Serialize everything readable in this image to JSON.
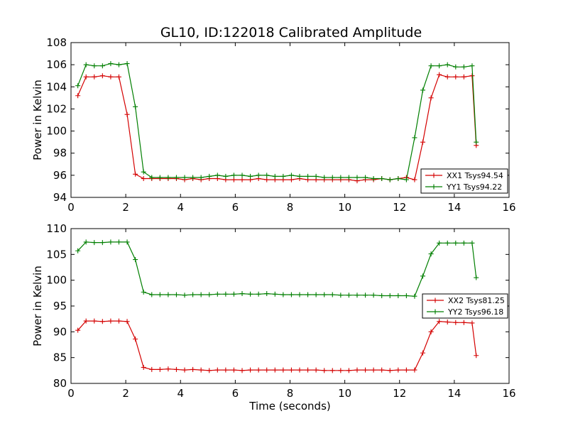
{
  "figure": {
    "title": "GL10, ID:122018 Calibrated Amplitude"
  },
  "chart_data": [
    {
      "type": "line",
      "title": "GL10, ID:122018 Calibrated Amplitude",
      "xlabel": "",
      "ylabel": "Power in Kelvin",
      "xlim": [
        0,
        16
      ],
      "ylim": [
        94,
        108
      ],
      "xticks": [
        0,
        2,
        4,
        6,
        8,
        10,
        12,
        14,
        16
      ],
      "yticks": [
        94,
        96,
        98,
        100,
        102,
        104,
        106,
        108
      ],
      "grid": false,
      "legend": "lower-right",
      "x": [
        0.25,
        0.55,
        0.85,
        1.15,
        1.45,
        1.75,
        2.05,
        2.35,
        2.65,
        2.95,
        3.25,
        3.55,
        3.85,
        4.15,
        4.45,
        4.75,
        5.05,
        5.35,
        5.65,
        5.95,
        6.25,
        6.55,
        6.85,
        7.15,
        7.45,
        7.75,
        8.05,
        8.35,
        8.65,
        8.95,
        9.25,
        9.55,
        9.85,
        10.15,
        10.45,
        10.75,
        11.05,
        11.35,
        11.65,
        11.95,
        12.25,
        12.55,
        12.85,
        13.15,
        13.45,
        13.75,
        14.05,
        14.35,
        14.65,
        14.8
      ],
      "series": [
        {
          "name": "XX1 Tsys94.54",
          "color": "#d40000",
          "values": [
            103.2,
            104.9,
            104.9,
            105.0,
            104.9,
            104.9,
            101.5,
            96.1,
            95.7,
            95.7,
            95.7,
            95.7,
            95.7,
            95.6,
            95.7,
            95.6,
            95.7,
            95.7,
            95.6,
            95.6,
            95.6,
            95.6,
            95.7,
            95.6,
            95.6,
            95.6,
            95.6,
            95.7,
            95.6,
            95.6,
            95.6,
            95.6,
            95.6,
            95.6,
            95.5,
            95.6,
            95.6,
            95.7,
            95.6,
            95.7,
            95.8,
            95.6,
            99.0,
            103.0,
            105.1,
            104.9,
            104.9,
            104.9,
            105.0,
            98.7
          ]
        },
        {
          "name": "YY1 Tsys94.22",
          "color": "#007f00",
          "values": [
            104.1,
            106.0,
            105.9,
            105.9,
            106.1,
            106.0,
            106.1,
            102.2,
            96.3,
            95.8,
            95.8,
            95.8,
            95.8,
            95.8,
            95.8,
            95.8,
            95.9,
            96.0,
            95.9,
            96.0,
            96.0,
            95.9,
            96.0,
            96.0,
            95.9,
            95.9,
            96.0,
            95.9,
            95.9,
            95.9,
            95.8,
            95.8,
            95.8,
            95.8,
            95.8,
            95.8,
            95.7,
            95.7,
            95.6,
            95.7,
            95.6,
            99.4,
            103.7,
            105.9,
            105.9,
            106.0,
            105.8,
            105.8,
            105.9,
            99.0
          ]
        }
      ]
    },
    {
      "type": "line",
      "title": "",
      "xlabel": "Time (seconds)",
      "ylabel": "Power in Kelvin",
      "xlim": [
        0,
        16
      ],
      "ylim": [
        80,
        110
      ],
      "xticks": [
        0,
        2,
        4,
        6,
        8,
        10,
        12,
        14,
        16
      ],
      "yticks": [
        80,
        85,
        90,
        95,
        100,
        105,
        110
      ],
      "grid": false,
      "legend": "right",
      "x": [
        0.25,
        0.55,
        0.85,
        1.15,
        1.45,
        1.75,
        2.05,
        2.35,
        2.65,
        2.95,
        3.25,
        3.55,
        3.85,
        4.15,
        4.45,
        4.75,
        5.05,
        5.35,
        5.65,
        5.95,
        6.25,
        6.55,
        6.85,
        7.15,
        7.45,
        7.75,
        8.05,
        8.35,
        8.65,
        8.95,
        9.25,
        9.55,
        9.85,
        10.15,
        10.45,
        10.75,
        11.05,
        11.35,
        11.65,
        11.95,
        12.25,
        12.55,
        12.85,
        13.15,
        13.45,
        13.75,
        14.05,
        14.35,
        14.65,
        14.8
      ],
      "series": [
        {
          "name": "XX2 Tsys81.25",
          "color": "#d40000",
          "values": [
            90.3,
            92.1,
            92.1,
            92.0,
            92.1,
            92.1,
            92.0,
            88.6,
            83.1,
            82.7,
            82.7,
            82.8,
            82.7,
            82.6,
            82.7,
            82.6,
            82.5,
            82.6,
            82.6,
            82.6,
            82.5,
            82.6,
            82.6,
            82.6,
            82.6,
            82.6,
            82.6,
            82.6,
            82.6,
            82.6,
            82.5,
            82.5,
            82.5,
            82.5,
            82.6,
            82.6,
            82.6,
            82.6,
            82.5,
            82.6,
            82.6,
            82.6,
            85.9,
            90.0,
            92.0,
            91.9,
            91.8,
            91.8,
            91.7,
            85.4
          ]
        },
        {
          "name": "YY2 Tsys96.18",
          "color": "#007f00",
          "values": [
            105.7,
            107.4,
            107.3,
            107.3,
            107.4,
            107.4,
            107.4,
            104.0,
            97.7,
            97.2,
            97.2,
            97.2,
            97.2,
            97.1,
            97.2,
            97.2,
            97.2,
            97.3,
            97.3,
            97.3,
            97.4,
            97.3,
            97.3,
            97.4,
            97.3,
            97.2,
            97.2,
            97.2,
            97.2,
            97.2,
            97.2,
            97.2,
            97.1,
            97.1,
            97.1,
            97.1,
            97.1,
            97.0,
            97.0,
            97.0,
            97.0,
            96.9,
            100.8,
            105.1,
            107.2,
            107.2,
            107.2,
            107.2,
            107.2,
            100.5
          ]
        }
      ]
    }
  ]
}
